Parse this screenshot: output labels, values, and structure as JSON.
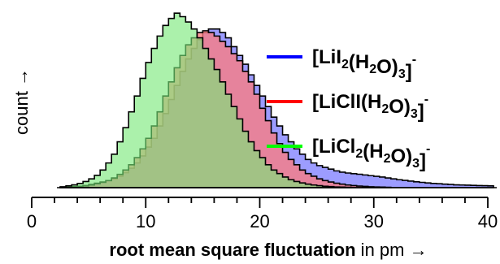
{
  "chart_data": {
    "type": "area",
    "style": "step-histogram",
    "xlabel_bold": "root mean square fluctuation",
    "xlabel_rest": " in pm →",
    "ylabel": "count →",
    "xlim": [
      0,
      40
    ],
    "x_ticks": [
      0,
      10,
      20,
      30,
      40
    ],
    "grid": false,
    "legend_position": "right",
    "bin_start": 2.5,
    "bin_width": 0.5,
    "series": [
      {
        "name": "[LiI2(H2O)3]-",
        "legend_parts": [
          [
            "[LiI",
            ""
          ],
          [
            "2",
            "sub"
          ],
          [
            "(H",
            ""
          ],
          [
            "2",
            "sub"
          ],
          [
            "O)",
            ""
          ],
          [
            "3",
            "sub"
          ],
          [
            "]",
            ""
          ],
          [
            "-",
            "sup"
          ]
        ],
        "color": "#0000ff",
        "fill": "#7b7bff",
        "values": [
          0.002,
          0.004,
          0.006,
          0.008,
          0.012,
          0.018,
          0.025,
          0.032,
          0.04,
          0.05,
          0.065,
          0.085,
          0.11,
          0.14,
          0.18,
          0.23,
          0.28,
          0.35,
          0.42,
          0.5,
          0.58,
          0.66,
          0.73,
          0.79,
          0.84,
          0.88,
          0.9,
          0.9,
          0.88,
          0.85,
          0.8,
          0.75,
          0.7,
          0.64,
          0.58,
          0.52,
          0.46,
          0.4,
          0.35,
          0.3,
          0.26,
          0.22,
          0.19,
          0.16,
          0.14,
          0.125,
          0.115,
          0.105,
          0.095,
          0.088,
          0.083,
          0.079,
          0.076,
          0.072,
          0.068,
          0.064,
          0.06,
          0.055,
          0.05,
          0.045,
          0.041,
          0.037,
          0.033,
          0.03,
          0.027,
          0.024,
          0.022,
          0.02,
          0.018,
          0.016,
          0.015,
          0.014,
          0.013,
          0.012,
          0.011,
          0.01
        ]
      },
      {
        "name": "[LiClI(H2O)3]-",
        "legend_parts": [
          [
            "[LiClI(H",
            ""
          ],
          [
            "2",
            "sub"
          ],
          [
            "O)",
            ""
          ],
          [
            "3",
            "sub"
          ],
          [
            "]",
            ""
          ],
          [
            "-",
            "sup"
          ]
        ],
        "color": "#ff0000",
        "fill": "#ff7b7b",
        "values": [
          0.002,
          0.003,
          0.005,
          0.007,
          0.01,
          0.015,
          0.022,
          0.03,
          0.04,
          0.055,
          0.075,
          0.1,
          0.13,
          0.17,
          0.22,
          0.28,
          0.35,
          0.43,
          0.52,
          0.6,
          0.68,
          0.75,
          0.81,
          0.85,
          0.88,
          0.89,
          0.88,
          0.86,
          0.83,
          0.8,
          0.76,
          0.72,
          0.66,
          0.6,
          0.53,
          0.45,
          0.38,
          0.31,
          0.25,
          0.2,
          0.16,
          0.13,
          0.1,
          0.08,
          0.065,
          0.05,
          0.04,
          0.032,
          0.025,
          0.02,
          0.015,
          0.012,
          0.009,
          0.007,
          0.005,
          0.004,
          0.003,
          0.002
        ]
      },
      {
        "name": "[LiCl2(H2O)3]-",
        "legend_parts": [
          [
            "[LiCl",
            ""
          ],
          [
            "2",
            "sub"
          ],
          [
            "(H",
            ""
          ],
          [
            "2",
            "sub"
          ],
          [
            "O)",
            ""
          ],
          [
            "3",
            "sub"
          ],
          [
            "]",
            ""
          ],
          [
            "-",
            "sup"
          ]
        ],
        "color": "#00ff00",
        "fill": "#77e877",
        "values": [
          0.005,
          0.01,
          0.016,
          0.024,
          0.035,
          0.05,
          0.07,
          0.1,
          0.14,
          0.19,
          0.26,
          0.34,
          0.43,
          0.52,
          0.62,
          0.71,
          0.79,
          0.86,
          0.92,
          0.96,
          0.99,
          0.97,
          0.94,
          0.9,
          0.85,
          0.79,
          0.73,
          0.67,
          0.6,
          0.53,
          0.46,
          0.39,
          0.32,
          0.26,
          0.21,
          0.17,
          0.13,
          0.1,
          0.08,
          0.06,
          0.045,
          0.035,
          0.027,
          0.02,
          0.015,
          0.011,
          0.008,
          0.006,
          0.004,
          0.003,
          0.002
        ]
      }
    ]
  }
}
